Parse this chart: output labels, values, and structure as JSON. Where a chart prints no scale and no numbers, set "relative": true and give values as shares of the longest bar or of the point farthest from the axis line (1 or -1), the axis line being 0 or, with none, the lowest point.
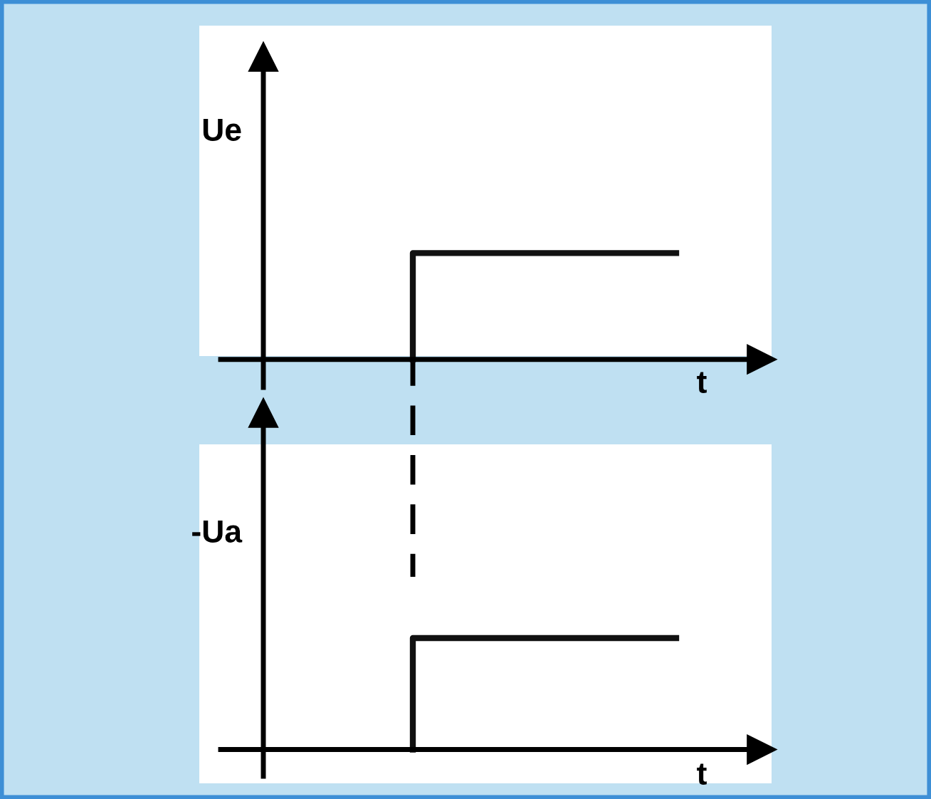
{
  "chart_data": [
    {
      "type": "step",
      "relative": true,
      "categories": [
        null,
        null
      ],
      "ylabel": "Ue",
      "xlabel": "t",
      "series": [
        {
          "color": "#111111",
          "values": [
            0,
            1
          ]
        }
      ]
    },
    {
      "type": "step",
      "relative": true,
      "categories": [
        null,
        null
      ],
      "ylabel": "-Ua",
      "xlabel": "t",
      "series": [
        {
          "color": "#111111",
          "values": [
            0,
            1
          ]
        }
      ]
    }
  ]
}
